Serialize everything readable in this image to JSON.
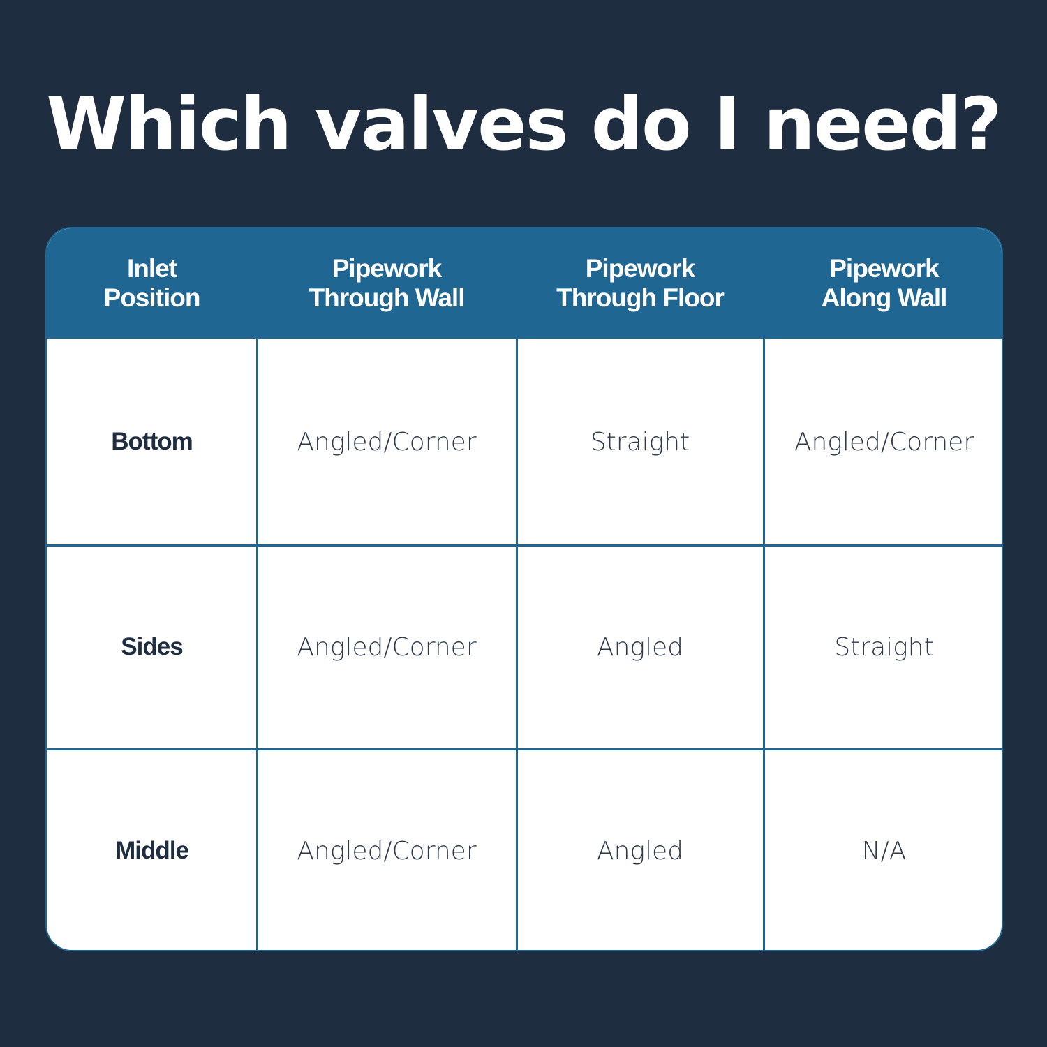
{
  "title": "Which valves do I need?",
  "colors": {
    "background": "#1e2d40",
    "header": "#1f6792",
    "cell": "#ffffff"
  },
  "table": {
    "headers": [
      "Inlet\nPosition",
      "Pipework\nThrough Wall",
      "Pipework\nThrough Floor",
      "Pipework\nAlong Wall"
    ],
    "rows": [
      {
        "label": "Bottom",
        "values": [
          "Angled/Corner",
          "Straight",
          "Angled/Corner"
        ]
      },
      {
        "label": "Sides",
        "values": [
          "Angled/Corner",
          "Angled",
          "Straight"
        ]
      },
      {
        "label": "Middle",
        "values": [
          "Angled/Corner",
          "Angled",
          "N/A"
        ]
      }
    ]
  }
}
